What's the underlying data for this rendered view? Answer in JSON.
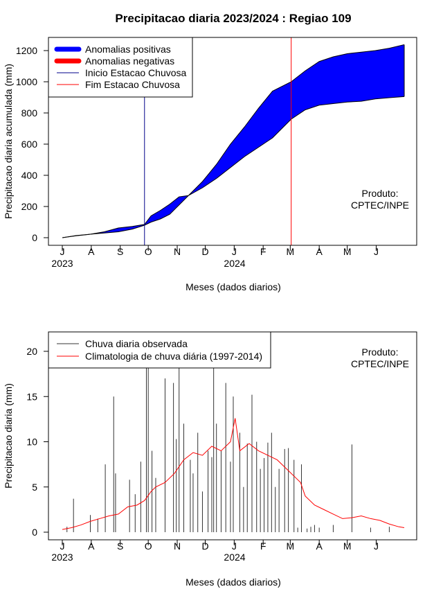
{
  "chart_data": [
    {
      "type": "area",
      "title": "Precipitacao diaria 2023/2024 : Regiao 109",
      "ylabel": "Precipitacao diaria acumulada (mm)",
      "xlabel": "Meses (dados diarios)",
      "ylim": [
        0,
        1250
      ],
      "yticks": [
        "0",
        "200",
        "400",
        "600",
        "800",
        "1000",
        "1200"
      ],
      "month_ticks": [
        "J",
        "A",
        "S",
        "O",
        "N",
        "D",
        "J",
        "F",
        "M",
        "A",
        "M",
        "J"
      ],
      "year_labels": [
        "2023",
        "2024"
      ],
      "legend_position": "top-left",
      "legend": [
        {
          "label": "Anomalias positivas",
          "color": "#0000ff"
        },
        {
          "label": "Anomalias negativas",
          "color": "#ff0000"
        },
        {
          "label": "Inicio Estacao Chuvosa",
          "color": "#00008b"
        },
        {
          "label": "Fim Estacao Chuvosa",
          "color": "#ff0000"
        }
      ],
      "annotation": [
        "Produto:",
        "CPTEC/INPE"
      ],
      "rainy_season_start_day": 88,
      "rainy_season_end_day": 245,
      "observed_accumulated": {
        "day": [
          0,
          15,
          30,
          45,
          60,
          75,
          88,
          95,
          105,
          115,
          125,
          135,
          150,
          165,
          180,
          195,
          210,
          225,
          245,
          260,
          275,
          290,
          305,
          320,
          335,
          350,
          366
        ],
        "value": [
          0,
          12,
          22,
          38,
          62,
          72,
          85,
          140,
          175,
          215,
          262,
          270,
          360,
          470,
          600,
          710,
          830,
          940,
          1000,
          1070,
          1130,
          1160,
          1180,
          1190,
          1200,
          1215,
          1238
        ]
      },
      "climatology_accumulated": {
        "day": [
          0,
          15,
          30,
          45,
          60,
          75,
          88,
          95,
          105,
          115,
          125,
          135,
          150,
          165,
          180,
          195,
          210,
          225,
          245,
          260,
          275,
          290,
          305,
          320,
          335,
          350,
          366
        ],
        "value": [
          0,
          14,
          22,
          30,
          38,
          55,
          80,
          100,
          120,
          150,
          210,
          270,
          320,
          380,
          450,
          520,
          580,
          640,
          760,
          820,
          850,
          860,
          870,
          875,
          890,
          898,
          905
        ]
      }
    },
    {
      "type": "bar",
      "title": "",
      "ylabel": "Precipitacao diaria (mm)",
      "xlabel": "Meses (dados diarios)",
      "ylim": [
        0,
        22
      ],
      "yticks": [
        "0",
        "5",
        "10",
        "15",
        "20"
      ],
      "month_ticks": [
        "J",
        "A",
        "S",
        "O",
        "N",
        "D",
        "J",
        "F",
        "M",
        "A",
        "M",
        "J"
      ],
      "year_labels": [
        "2023",
        "2024"
      ],
      "legend_position": "top-left",
      "legend": [
        {
          "label": "Chuva diaria observada",
          "color": "#333333"
        },
        {
          "label": "Climatologia de chuva diária (1997-2014)",
          "color": "#ff0000"
        }
      ],
      "annotation": [
        "Produto:",
        "CPTEC/INPE"
      ],
      "observed_daily": {
        "day": [
          5,
          12,
          30,
          38,
          46,
          55,
          57,
          72,
          78,
          84,
          90,
          92,
          96,
          100,
          110,
          119,
          122,
          125,
          130,
          137,
          140,
          145,
          150,
          156,
          160,
          162,
          165,
          170,
          175,
          180,
          183,
          190,
          194,
          198,
          203,
          208,
          212,
          216,
          220,
          224,
          228,
          232,
          238,
          242,
          248,
          252,
          256,
          262,
          266,
          270,
          275,
          290,
          310,
          330,
          350
        ],
        "value": [
          0.6,
          3.7,
          1.9,
          1.5,
          7.5,
          15.0,
          6.5,
          5.8,
          4.2,
          7.8,
          18.2,
          18.2,
          9.0,
          6.0,
          17.0,
          16.5,
          10.3,
          18.2,
          12.0,
          8.0,
          6.5,
          11.0,
          4.5,
          9.0,
          8.3,
          18.2,
          12.0,
          9.0,
          16.5,
          7.8,
          15.0,
          11.0,
          5.0,
          9.8,
          15.2,
          10.0,
          7.0,
          8.2,
          9.9,
          11.0,
          5.0,
          7.0,
          9.2,
          9.3,
          8.0,
          0.5,
          7.5,
          0.4,
          0.6,
          0.8,
          0.5,
          0.8,
          9.7,
          0.5,
          0.6
        ]
      },
      "climatology_daily": {
        "day": [
          0,
          10,
          20,
          30,
          40,
          50,
          60,
          70,
          80,
          88,
          95,
          100,
          110,
          120,
          130,
          140,
          150,
          160,
          170,
          180,
          185,
          190,
          200,
          210,
          220,
          230,
          240,
          250,
          255,
          260,
          270,
          280,
          290,
          300,
          310,
          320,
          330,
          340,
          350,
          360,
          366
        ],
        "value": [
          0.3,
          0.5,
          0.8,
          1.2,
          1.5,
          1.8,
          2.0,
          2.8,
          3.0,
          3.5,
          4.5,
          5.0,
          5.5,
          6.5,
          8.0,
          8.8,
          8.5,
          9.5,
          9.0,
          10.0,
          12.6,
          9.0,
          9.8,
          9.0,
          8.5,
          8.0,
          7.0,
          6.0,
          5.5,
          4.0,
          3.0,
          2.5,
          2.0,
          1.5,
          1.6,
          1.8,
          1.5,
          1.3,
          0.9,
          0.6,
          0.5
        ]
      }
    }
  ]
}
